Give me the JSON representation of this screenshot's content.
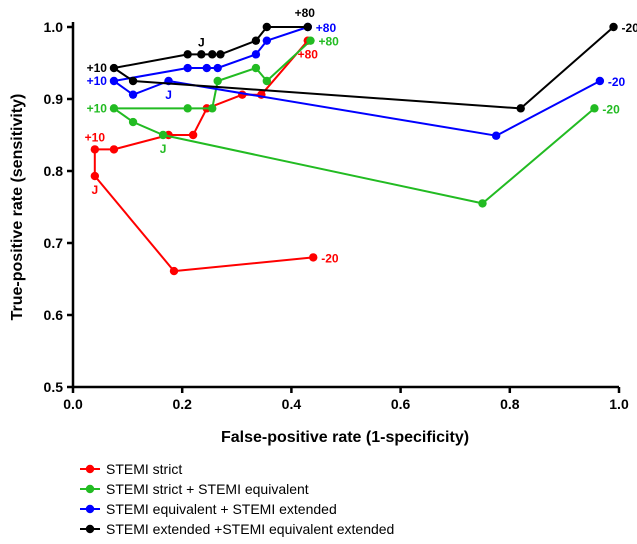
{
  "chart_data": {
    "type": "line",
    "title": "",
    "xlabel": "False-positive rate (1-specificity)",
    "ylabel": "True-positive rate (sensitivity)",
    "xlim": [
      0.0,
      1.0
    ],
    "ylim": [
      0.5,
      1.0
    ],
    "x_ticks": [
      "0.0",
      "0.2",
      "0.4",
      "0.6",
      "0.8",
      "1.0"
    ],
    "y_ticks": [
      "0.5",
      "0.6",
      "0.7",
      "0.8",
      "0.9",
      "1.0"
    ],
    "grid": false,
    "legend_position": "bottom",
    "series": [
      {
        "name": "STEMI strict",
        "color": "#ff0000",
        "points": [
          {
            "x": 0.44,
            "y": 0.68
          },
          {
            "x": 0.185,
            "y": 0.661
          },
          {
            "x": 0.04,
            "y": 0.793
          },
          {
            "x": 0.04,
            "y": 0.83
          },
          {
            "x": 0.075,
            "y": 0.83
          },
          {
            "x": 0.175,
            "y": 0.85
          },
          {
            "x": 0.22,
            "y": 0.85
          },
          {
            "x": 0.245,
            "y": 0.887
          },
          {
            "x": 0.31,
            "y": 0.906
          },
          {
            "x": 0.345,
            "y": 0.906
          },
          {
            "x": 0.43,
            "y": 0.981
          }
        ],
        "annotations": [
          {
            "text": "-20",
            "x": 0.44,
            "y": 0.68,
            "side": "right"
          },
          {
            "text": "J",
            "x": 0.04,
            "y": 0.793,
            "side": "below"
          },
          {
            "text": "+10",
            "x": 0.04,
            "y": 0.83,
            "side": "above"
          },
          {
            "text": "+80",
            "x": 0.43,
            "y": 0.981,
            "side": "below"
          }
        ]
      },
      {
        "name": "STEMI strict + STEMI equivalent",
        "color": "#22bb22",
        "points": [
          {
            "x": 0.955,
            "y": 0.887
          },
          {
            "x": 0.75,
            "y": 0.755
          },
          {
            "x": 0.165,
            "y": 0.85
          },
          {
            "x": 0.11,
            "y": 0.868
          },
          {
            "x": 0.075,
            "y": 0.887
          },
          {
            "x": 0.21,
            "y": 0.887
          },
          {
            "x": 0.255,
            "y": 0.887
          },
          {
            "x": 0.265,
            "y": 0.925
          },
          {
            "x": 0.335,
            "y": 0.943
          },
          {
            "x": 0.355,
            "y": 0.925
          },
          {
            "x": 0.435,
            "y": 0.981
          }
        ],
        "annotations": [
          {
            "text": "-20",
            "x": 0.955,
            "y": 0.887,
            "side": "right"
          },
          {
            "text": "J",
            "x": 0.165,
            "y": 0.85,
            "side": "below"
          },
          {
            "text": "+10",
            "x": 0.075,
            "y": 0.887,
            "side": "left"
          },
          {
            "text": "+80",
            "x": 0.435,
            "y": 0.981,
            "side": "right"
          }
        ]
      },
      {
        "name": "STEMI equivalent + STEMI extended",
        "color": "#0000ff",
        "points": [
          {
            "x": 0.965,
            "y": 0.925
          },
          {
            "x": 0.775,
            "y": 0.849
          },
          {
            "x": 0.175,
            "y": 0.925
          },
          {
            "x": 0.11,
            "y": 0.906
          },
          {
            "x": 0.075,
            "y": 0.925
          },
          {
            "x": 0.21,
            "y": 0.943
          },
          {
            "x": 0.245,
            "y": 0.943
          },
          {
            "x": 0.265,
            "y": 0.943
          },
          {
            "x": 0.335,
            "y": 0.962
          },
          {
            "x": 0.355,
            "y": 0.981
          },
          {
            "x": 0.43,
            "y": 1.0
          }
        ],
        "annotations": [
          {
            "text": "-20",
            "x": 0.965,
            "y": 0.925,
            "side": "right"
          },
          {
            "text": "J",
            "x": 0.175,
            "y": 0.925,
            "side": "below"
          },
          {
            "text": "+10",
            "x": 0.075,
            "y": 0.925,
            "side": "left"
          },
          {
            "text": "+80",
            "x": 0.43,
            "y": 1.0,
            "side": "right"
          }
        ]
      },
      {
        "name": "STEMI extended +STEMI equivalent extended",
        "color": "#000000",
        "points": [
          {
            "x": 0.99,
            "y": 1.0
          },
          {
            "x": 0.82,
            "y": 0.887
          },
          {
            "x": 0.11,
            "y": 0.925
          },
          {
            "x": 0.075,
            "y": 0.943
          },
          {
            "x": 0.21,
            "y": 0.962
          },
          {
            "x": 0.235,
            "y": 0.962
          },
          {
            "x": 0.255,
            "y": 0.962
          },
          {
            "x": 0.27,
            "y": 0.962
          },
          {
            "x": 0.335,
            "y": 0.981
          },
          {
            "x": 0.355,
            "y": 1.0
          },
          {
            "x": 0.43,
            "y": 1.0
          }
        ],
        "annotations": [
          {
            "text": "-20",
            "x": 0.99,
            "y": 1.0,
            "side": "right"
          },
          {
            "text": "J",
            "x": 0.235,
            "y": 0.962,
            "side": "above"
          },
          {
            "text": "+10",
            "x": 0.075,
            "y": 0.943,
            "side": "left"
          },
          {
            "text": "+80",
            "x": 0.43,
            "y": 1.0,
            "side": "above-left"
          }
        ]
      }
    ]
  }
}
